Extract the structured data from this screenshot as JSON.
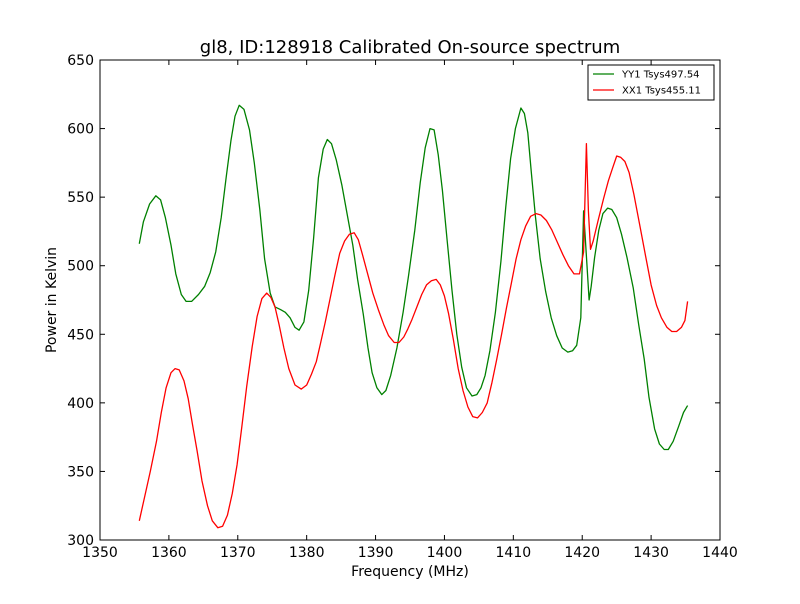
{
  "chart_data": {
    "type": "line",
    "title": "gl8, ID:128918 Calibrated On-source spectrum",
    "xlabel": "Frequency (MHz)",
    "ylabel": "Power in Kelvin",
    "xlim": [
      1350,
      1440
    ],
    "ylim": [
      300,
      650
    ],
    "xticks": [
      1350,
      1360,
      1370,
      1380,
      1390,
      1400,
      1410,
      1420,
      1430,
      1440
    ],
    "yticks": [
      300,
      350,
      400,
      450,
      500,
      550,
      600,
      650
    ],
    "grid": false,
    "legend_position": "top-right",
    "series": [
      {
        "name": "YY1 Tsys497.54",
        "color": "#008000",
        "x": [
          1355.7,
          1356.3,
          1357.2,
          1358.1,
          1358.8,
          1359.5,
          1360.3,
          1361.0,
          1361.8,
          1362.5,
          1363.3,
          1364.3,
          1365.2,
          1366.0,
          1366.8,
          1367.6,
          1368.3,
          1369.0,
          1369.6,
          1370.2,
          1370.9,
          1371.7,
          1372.4,
          1373.2,
          1373.9,
          1374.7,
          1375.4,
          1376.2,
          1376.9,
          1377.6,
          1378.3,
          1378.9,
          1379.6,
          1380.3,
          1381.0,
          1381.7,
          1382.4,
          1383.0,
          1383.6,
          1384.3,
          1385.1,
          1385.9,
          1386.7,
          1387.4,
          1388.2,
          1388.9,
          1389.5,
          1390.2,
          1390.9,
          1391.5,
          1392.2,
          1393.1,
          1394.0,
          1394.8,
          1395.7,
          1396.5,
          1397.2,
          1397.9,
          1398.5,
          1399.1,
          1399.7,
          1400.4,
          1401.1,
          1401.8,
          1402.5,
          1403.2,
          1404.0,
          1404.7,
          1405.3,
          1405.9,
          1406.6,
          1407.4,
          1408.2,
          1408.9,
          1409.6,
          1410.3,
          1411.1,
          1411.6,
          1412.1,
          1412.6,
          1413.2,
          1413.9,
          1414.7,
          1415.5,
          1416.3,
          1417.1,
          1417.9,
          1418.6,
          1419.2,
          1419.8,
          1420.2,
          1420.7,
          1421.0,
          1421.3,
          1421.8,
          1422.4,
          1423.0,
          1423.7,
          1424.3,
          1425.0,
          1425.7,
          1426.5,
          1427.4,
          1428.2,
          1429.0,
          1429.7,
          1430.5,
          1431.2,
          1431.9,
          1432.5,
          1433.2,
          1434.0,
          1434.7,
          1435.3
        ],
        "values": [
          516,
          532,
          545,
          551,
          548,
          535,
          515,
          494,
          479,
          474,
          474,
          479,
          485,
          495,
          510,
          535,
          564,
          591,
          609,
          617,
          614,
          599,
          575,
          541,
          505,
          480,
          470,
          468,
          466,
          462,
          455,
          453,
          459,
          482,
          520,
          564,
          585,
          592,
          589,
          577,
          559,
          537,
          515,
          490,
          465,
          440,
          422,
          411,
          406,
          409,
          420,
          440,
          466,
          493,
          526,
          561,
          586,
          600,
          599,
          581,
          555,
          518,
          482,
          450,
          426,
          411,
          405,
          406,
          411,
          420,
          438,
          466,
          503,
          543,
          578,
          600,
          615,
          611,
          597,
          569,
          536,
          505,
          481,
          462,
          449,
          440,
          437,
          438,
          442,
          462,
          540,
          500,
          475,
          485,
          506,
          526,
          538,
          542,
          541,
          535,
          523,
          506,
          484,
          457,
          432,
          404,
          381,
          370,
          366,
          366,
          372,
          383,
          393,
          398
        ]
      },
      {
        "name": "XX1 Tsys455.11",
        "color": "#ff0000",
        "x": [
          1355.7,
          1356.5,
          1357.3,
          1358.2,
          1358.9,
          1359.6,
          1360.3,
          1360.9,
          1361.5,
          1362.2,
          1362.8,
          1363.4,
          1364.1,
          1364.8,
          1365.6,
          1366.3,
          1367.1,
          1367.8,
          1368.5,
          1369.2,
          1369.9,
          1370.6,
          1371.3,
          1372.1,
          1372.8,
          1373.5,
          1374.2,
          1374.8,
          1375.4,
          1376.0,
          1376.7,
          1377.4,
          1378.3,
          1379.2,
          1380.0,
          1380.7,
          1381.4,
          1382.0,
          1382.7,
          1383.4,
          1384.1,
          1384.8,
          1385.5,
          1386.2,
          1386.9,
          1387.5,
          1388.1,
          1388.8,
          1389.6,
          1390.4,
          1391.2,
          1391.9,
          1392.7,
          1393.4,
          1394.1,
          1394.7,
          1395.3,
          1396.0,
          1396.7,
          1397.4,
          1398.1,
          1398.8,
          1399.4,
          1400.0,
          1400.6,
          1401.3,
          1402.0,
          1402.7,
          1403.4,
          1404.1,
          1404.8,
          1405.5,
          1406.2,
          1406.9,
          1407.6,
          1408.3,
          1409.0,
          1409.7,
          1410.4,
          1411.1,
          1411.8,
          1412.5,
          1413.3,
          1414.0,
          1414.8,
          1415.6,
          1416.4,
          1417.2,
          1418.0,
          1418.8,
          1419.6,
          1420.2,
          1420.6,
          1420.9,
          1421.2,
          1421.6,
          1422.3,
          1423.1,
          1423.8,
          1424.4,
          1425.0,
          1425.6,
          1426.2,
          1426.8,
          1427.5,
          1428.3,
          1429.2,
          1430.0,
          1430.8,
          1431.5,
          1432.3,
          1433.0,
          1433.7,
          1434.4,
          1434.9,
          1435.3
        ],
        "values": [
          314,
          332,
          350,
          372,
          393,
          411,
          422,
          425,
          424,
          416,
          403,
          385,
          365,
          343,
          325,
          314,
          309,
          310,
          318,
          334,
          355,
          383,
          412,
          441,
          463,
          476,
          480,
          477,
          470,
          457,
          440,
          425,
          413,
          410,
          413,
          421,
          430,
          443,
          459,
          476,
          493,
          509,
          518,
          523,
          524,
          519,
          508,
          495,
          480,
          468,
          457,
          449,
          444,
          444,
          448,
          454,
          461,
          470,
          479,
          486,
          489,
          490,
          486,
          478,
          465,
          446,
          425,
          409,
          397,
          390,
          389,
          393,
          400,
          415,
          432,
          450,
          469,
          487,
          505,
          519,
          529,
          536,
          538,
          537,
          533,
          526,
          517,
          508,
          500,
          494,
          494,
          510,
          589,
          540,
          512,
          518,
          533,
          549,
          562,
          571,
          580,
          579,
          576,
          568,
          552,
          531,
          507,
          486,
          471,
          462,
          455,
          452,
          452,
          455,
          460,
          474
        ]
      }
    ]
  }
}
